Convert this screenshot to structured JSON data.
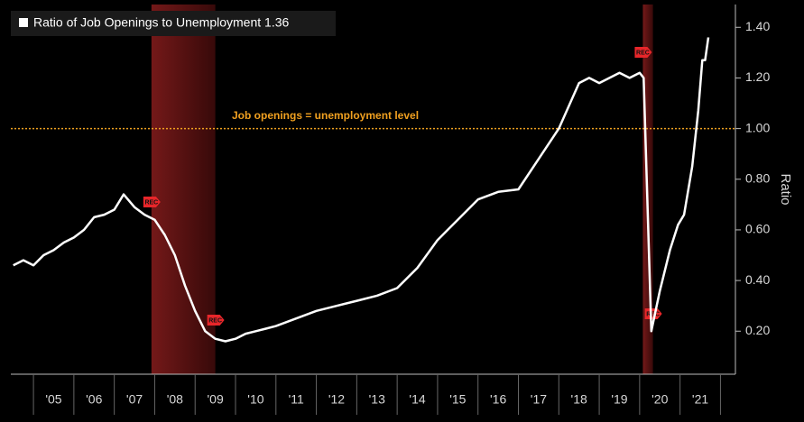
{
  "chart_data": {
    "type": "line",
    "legend_label": "Ratio of Job Openings to Unemployment 1.36",
    "y_label": "Ratio",
    "reference_line": {
      "value": 1.0,
      "label": "Job openings = unemployment level",
      "color": "#f0a020"
    },
    "recession_label": "REC",
    "recessions": [
      [
        2007.92,
        2009.5
      ],
      [
        2020.08,
        2020.33
      ]
    ],
    "xlim": [
      2004.44,
      2022.37
    ],
    "ylim": [
      0.03,
      1.49
    ],
    "yticks": [
      {
        "value": 0.2,
        "label": "0.20"
      },
      {
        "value": 0.4,
        "label": "0.40"
      },
      {
        "value": 0.6,
        "label": "0.60"
      },
      {
        "value": 0.8,
        "label": "0.80"
      },
      {
        "value": 1.0,
        "label": "1.00"
      },
      {
        "value": 1.2,
        "label": "1.20"
      },
      {
        "value": 1.4,
        "label": "1.40"
      }
    ],
    "xticks": [
      {
        "value": 2005.5,
        "label": "'05"
      },
      {
        "value": 2006.5,
        "label": "'06"
      },
      {
        "value": 2007.5,
        "label": "'07"
      },
      {
        "value": 2008.5,
        "label": "'08"
      },
      {
        "value": 2009.5,
        "label": "'09"
      },
      {
        "value": 2010.5,
        "label": "'10"
      },
      {
        "value": 2011.5,
        "label": "'11"
      },
      {
        "value": 2012.5,
        "label": "'12"
      },
      {
        "value": 2013.5,
        "label": "'13"
      },
      {
        "value": 2014.5,
        "label": "'14"
      },
      {
        "value": 2015.5,
        "label": "'15"
      },
      {
        "value": 2016.5,
        "label": "'16"
      },
      {
        "value": 2017.5,
        "label": "'17"
      },
      {
        "value": 2018.5,
        "label": "'18"
      },
      {
        "value": 2019.5,
        "label": "'19"
      },
      {
        "value": 2020.5,
        "label": "'20"
      },
      {
        "value": 2021.5,
        "label": "'21"
      }
    ],
    "series": [
      {
        "name": "Ratio of Job Openings to Unemployment",
        "color": "#ffffff",
        "x": [
          2004.5,
          2004.75,
          2005.0,
          2005.25,
          2005.5,
          2005.75,
          2006.0,
          2006.25,
          2006.5,
          2006.75,
          2007.0,
          2007.23,
          2007.5,
          2007.75,
          2008.0,
          2008.25,
          2008.5,
          2008.75,
          2009.0,
          2009.25,
          2009.5,
          2009.75,
          2010.0,
          2010.25,
          2010.5,
          2010.75,
          2011.0,
          2011.5,
          2012.0,
          2012.5,
          2013.0,
          2013.5,
          2014.0,
          2014.5,
          2015.0,
          2015.5,
          2016.0,
          2016.5,
          2017.0,
          2017.5,
          2018.0,
          2018.5,
          2018.75,
          2019.0,
          2019.5,
          2019.75,
          2020.0,
          2020.1,
          2020.29,
          2020.5,
          2020.75,
          2020.95,
          2021.1,
          2021.3,
          2021.45,
          2021.55,
          2021.62,
          2021.7
        ],
        "values": [
          0.46,
          0.48,
          0.46,
          0.5,
          0.52,
          0.55,
          0.57,
          0.6,
          0.65,
          0.66,
          0.68,
          0.74,
          0.69,
          0.66,
          0.64,
          0.58,
          0.5,
          0.38,
          0.28,
          0.2,
          0.17,
          0.16,
          0.17,
          0.19,
          0.2,
          0.21,
          0.22,
          0.25,
          0.28,
          0.3,
          0.32,
          0.34,
          0.37,
          0.45,
          0.56,
          0.64,
          0.72,
          0.75,
          0.76,
          0.88,
          1.0,
          1.18,
          1.2,
          1.18,
          1.22,
          1.2,
          1.22,
          1.2,
          0.2,
          0.36,
          0.52,
          0.62,
          0.66,
          0.85,
          1.07,
          1.27,
          1.27,
          1.36
        ]
      }
    ]
  }
}
